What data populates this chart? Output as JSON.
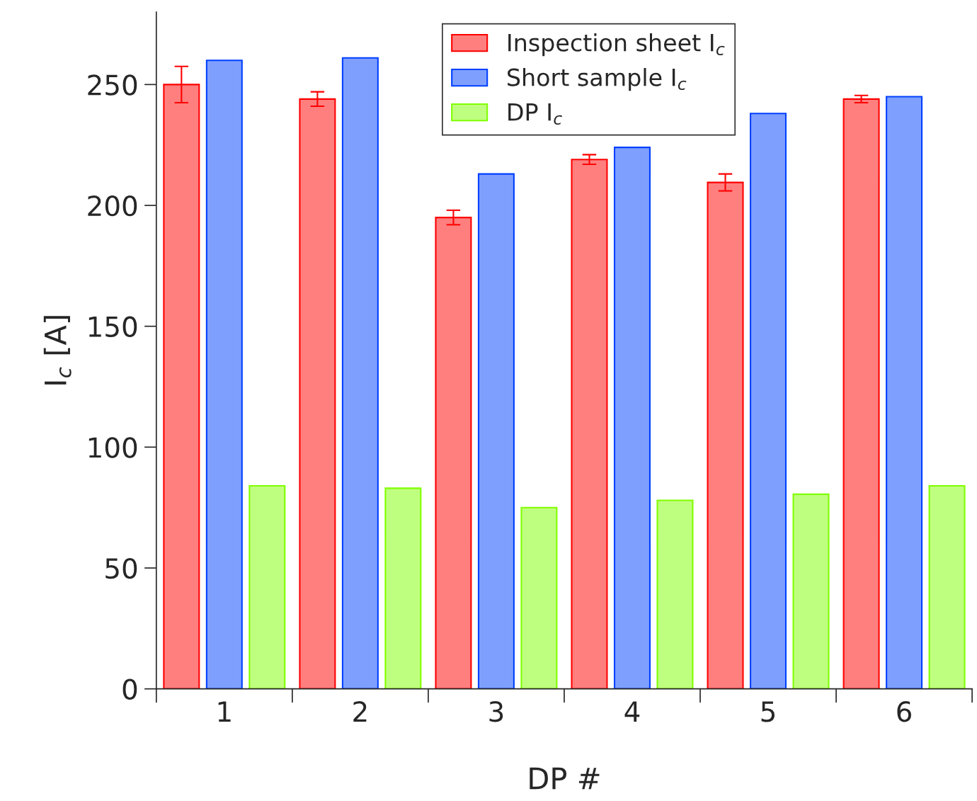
{
  "chart_data": {
    "type": "bar",
    "xlabel": "DP #",
    "ylabel": "I$_{c}$ [A]",
    "categories": [
      "1",
      "2",
      "3",
      "4",
      "5",
      "6"
    ],
    "series": [
      {
        "name": "Inspection sheet I$_{c}$",
        "color": "#ff7f7f",
        "values": [
          250,
          244,
          195,
          219,
          209.5,
          244
        ],
        "errors": [
          7.5,
          3,
          3,
          2,
          3.5,
          1.5
        ]
      },
      {
        "name": "Short sample I$_{c}$",
        "color": "#7f9fff",
        "values": [
          260,
          261,
          213,
          224,
          238,
          245
        ]
      },
      {
        "name": "DP I$_{c}$",
        "color": "#bfff7f",
        "values": [
          84,
          83,
          75,
          78,
          80.5,
          84
        ]
      }
    ],
    "ylim": [
      0,
      280
    ],
    "yticks": [
      0,
      50,
      100,
      150,
      200,
      250
    ],
    "grid": false,
    "legend": "top"
  }
}
